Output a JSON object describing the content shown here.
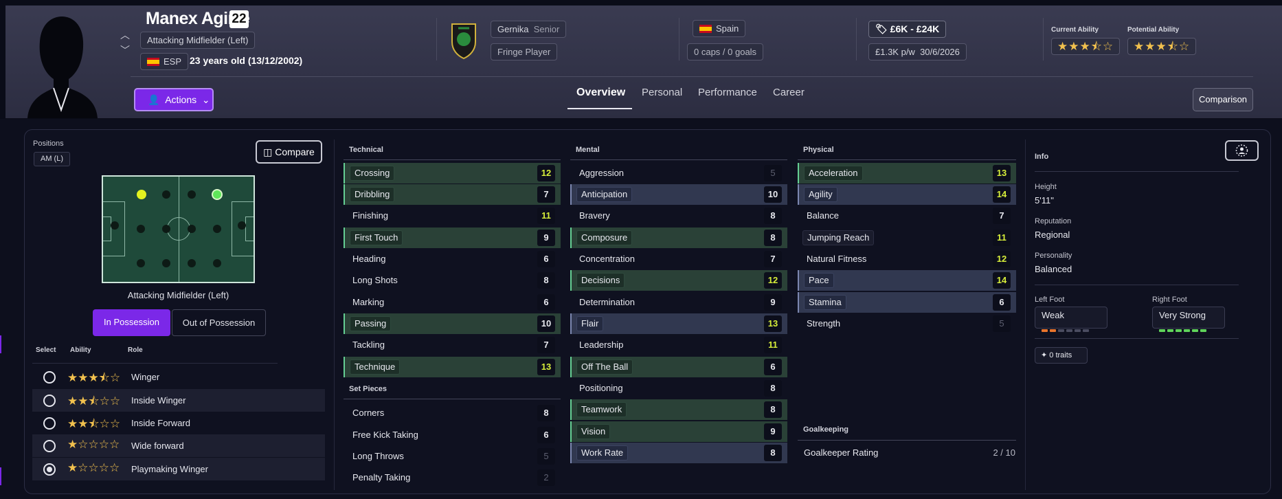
{
  "player": {
    "name": "Manex Agirre",
    "number": "22",
    "position": "Attacking Midfielder (Left)",
    "nationality_code": "ESP",
    "age_text": "23 years old (13/12/2002)"
  },
  "club": {
    "name": "Gernika",
    "level": "Senior",
    "squad_status": "Fringe Player"
  },
  "nation": {
    "name": "Spain",
    "caps_goals": "0 caps / 0 goals"
  },
  "contract": {
    "value_range": "£6K - £24K",
    "wage": "£1.3K p/w",
    "expiry": "30/6/2026"
  },
  "ability": {
    "current_label": "Current Ability",
    "potential_label": "Potential Ability",
    "current_stars": "★★★⯪☆",
    "potential_stars": "★★★⯪☆",
    "current_value": 3.5,
    "potential_value": 3.5
  },
  "actions_label": "Actions",
  "tabs": [
    "Overview",
    "Personal",
    "Performance",
    "Career"
  ],
  "comparison_label": "Comparison",
  "positions": {
    "label": "Positions",
    "chip": "AM (L)",
    "compare_label": "Compare",
    "caption": "Attacking Midfielder (Left)",
    "in_possession": "In Possession",
    "out_of_possession": "Out of Possession"
  },
  "roles": {
    "headers": [
      "Select",
      "Ability",
      "Role"
    ],
    "rows": [
      {
        "name": "Winger",
        "stars": "★★★⯪☆",
        "rating": 3.5,
        "selected": false
      },
      {
        "name": "Inside Winger",
        "stars": "★★⯪☆☆",
        "rating": 2.5,
        "selected": false
      },
      {
        "name": "Inside Forward",
        "stars": "★★⯪☆☆",
        "rating": 2.5,
        "selected": false
      },
      {
        "name": "Wide forward",
        "stars": "★☆☆☆☆",
        "rating": 1,
        "selected": false
      },
      {
        "name": "Playmaking Winger",
        "stars": "★☆☆☆☆",
        "rating": 1,
        "selected": true
      }
    ]
  },
  "technical": {
    "title": "Technical",
    "attrs": [
      {
        "name": "Crossing",
        "value": "12"
      },
      {
        "name": "Dribbling",
        "value": "7"
      },
      {
        "name": "Finishing",
        "value": "11"
      },
      {
        "name": "First Touch",
        "value": "9"
      },
      {
        "name": "Heading",
        "value": "6"
      },
      {
        "name": "Long Shots",
        "value": "8"
      },
      {
        "name": "Marking",
        "value": "6"
      },
      {
        "name": "Passing",
        "value": "10"
      },
      {
        "name": "Tackling",
        "value": "7"
      },
      {
        "name": "Technique",
        "value": "13"
      }
    ]
  },
  "set_pieces": {
    "title": "Set Pieces",
    "attrs": [
      {
        "name": "Corners",
        "value": "8"
      },
      {
        "name": "Free Kick Taking",
        "value": "6"
      },
      {
        "name": "Long Throws",
        "value": "5"
      },
      {
        "name": "Penalty Taking",
        "value": "2"
      }
    ]
  },
  "mental": {
    "title": "Mental",
    "attrs": [
      {
        "name": "Aggression",
        "value": "5"
      },
      {
        "name": "Anticipation",
        "value": "10"
      },
      {
        "name": "Bravery",
        "value": "8"
      },
      {
        "name": "Composure",
        "value": "8"
      },
      {
        "name": "Concentration",
        "value": "7"
      },
      {
        "name": "Decisions",
        "value": "12"
      },
      {
        "name": "Determination",
        "value": "9"
      },
      {
        "name": "Flair",
        "value": "13"
      },
      {
        "name": "Leadership",
        "value": "11"
      },
      {
        "name": "Off The Ball",
        "value": "6"
      },
      {
        "name": "Positioning",
        "value": "8"
      },
      {
        "name": "Teamwork",
        "value": "8"
      },
      {
        "name": "Vision",
        "value": "9"
      },
      {
        "name": "Work Rate",
        "value": "8"
      }
    ]
  },
  "physical": {
    "title": "Physical",
    "attrs": [
      {
        "name": "Acceleration",
        "value": "13"
      },
      {
        "name": "Agility",
        "value": "14"
      },
      {
        "name": "Balance",
        "value": "7"
      },
      {
        "name": "Jumping Reach",
        "value": "11"
      },
      {
        "name": "Natural Fitness",
        "value": "12"
      },
      {
        "name": "Pace",
        "value": "14"
      },
      {
        "name": "Stamina",
        "value": "6"
      },
      {
        "name": "Strength",
        "value": "5"
      }
    ]
  },
  "goalkeeping": {
    "title": "Goalkeeping",
    "rating_label": "Goalkeeper Rating",
    "rating_value": "2 / 10"
  },
  "info": {
    "title": "Info",
    "height_label": "Height",
    "height": "5'11\"",
    "reputation_label": "Reputation",
    "reputation": "Regional",
    "personality_label": "Personality",
    "personality": "Balanced",
    "left_foot_label": "Left Foot",
    "left_foot": "Weak",
    "left_foot_level": 2,
    "right_foot_label": "Right Foot",
    "right_foot": "Very Strong",
    "right_foot_level": 6,
    "traits": "0 traits"
  },
  "colors": {
    "accent": "#7b28e8",
    "green_highlight": "#65d094",
    "yellow_value": "#d7ee3a",
    "star": "#f2c14e",
    "weak_bar": "#e8742c",
    "strong_bar": "#5fd35a"
  }
}
